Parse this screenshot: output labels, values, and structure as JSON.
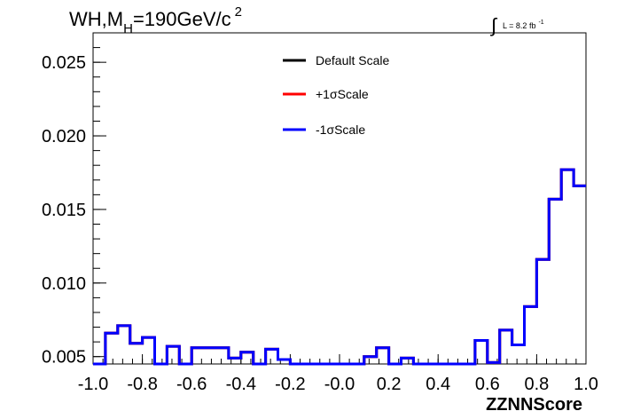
{
  "chart_data": {
    "type": "step-histogram",
    "title": "WH,M",
    "title_subscript": "H",
    "title_tail": "=190GeV/c",
    "title_superscript": "2",
    "lumi_label": "L = 8.2 fb",
    "lumi_superscript": "-1",
    "xlabel": "ZZNNScore",
    "ylabel": "",
    "xlim": [
      -1.0,
      1.0
    ],
    "ylim": [
      0.0045,
      0.027
    ],
    "x_ticks": [
      "-1.0",
      "-0.8",
      "-0.6",
      "-0.4",
      "-0.2",
      "-0.0",
      "0.2",
      "0.4",
      "0.6",
      "0.8",
      "1.0"
    ],
    "y_ticks": [
      "0.005",
      "0.010",
      "0.015",
      "0.020",
      "0.025"
    ],
    "legend_position": "top-center",
    "bin_edges": [
      -1.0,
      -0.95,
      -0.9,
      -0.85,
      -0.8,
      -0.75,
      -0.7,
      -0.65,
      -0.6,
      -0.55,
      -0.5,
      -0.45,
      -0.4,
      -0.35,
      -0.3,
      -0.25,
      -0.2,
      -0.15,
      -0.1,
      -0.05,
      0.0,
      0.05,
      0.1,
      0.15,
      0.2,
      0.25,
      0.3,
      0.35,
      0.4,
      0.45,
      0.5,
      0.55,
      0.6,
      0.65,
      0.7,
      0.75,
      0.8,
      0.85,
      0.9,
      0.95,
      1.0
    ],
    "series": [
      {
        "name": "Default Scale",
        "color": "#000000",
        "values": [
          0.0045,
          0.0066,
          0.0071,
          0.0059,
          0.0063,
          0.0045,
          0.0057,
          0.0045,
          0.0056,
          0.0056,
          0.0056,
          0.0049,
          0.0053,
          0.0045,
          0.0055,
          0.0048,
          0.0045,
          0.0045,
          0.0045,
          0.0045,
          0.0045,
          0.0045,
          0.005,
          0.0056,
          0.0045,
          0.0049,
          0.0045,
          0.0045,
          0.0045,
          0.0045,
          0.0045,
          0.0061,
          0.0046,
          0.0068,
          0.0058,
          0.0084,
          0.0116,
          0.0157,
          0.0177,
          0.0166
        ]
      },
      {
        "name": "+1σScale",
        "color": "#ff0000",
        "values": [
          0.0045,
          0.0066,
          0.0071,
          0.0059,
          0.0063,
          0.0045,
          0.0057,
          0.0045,
          0.0056,
          0.0056,
          0.0056,
          0.0049,
          0.0053,
          0.0045,
          0.0055,
          0.0048,
          0.0045,
          0.0045,
          0.0045,
          0.0045,
          0.0045,
          0.0045,
          0.005,
          0.0056,
          0.0045,
          0.0049,
          0.0045,
          0.0045,
          0.0045,
          0.0045,
          0.0045,
          0.0061,
          0.0046,
          0.0068,
          0.0058,
          0.0084,
          0.0116,
          0.0157,
          0.0177,
          0.0166
        ]
      },
      {
        "name": "-1σScale",
        "color": "#0000ff",
        "values": [
          0.0045,
          0.0066,
          0.0071,
          0.0059,
          0.0063,
          0.0045,
          0.0057,
          0.0045,
          0.0056,
          0.0056,
          0.0056,
          0.0049,
          0.0053,
          0.0045,
          0.0055,
          0.0048,
          0.0045,
          0.0045,
          0.0045,
          0.0045,
          0.0045,
          0.0045,
          0.005,
          0.0056,
          0.0045,
          0.0049,
          0.0045,
          0.0045,
          0.0045,
          0.0045,
          0.0045,
          0.0061,
          0.0046,
          0.0068,
          0.0058,
          0.0084,
          0.0116,
          0.0157,
          0.0177,
          0.0166
        ]
      }
    ]
  }
}
